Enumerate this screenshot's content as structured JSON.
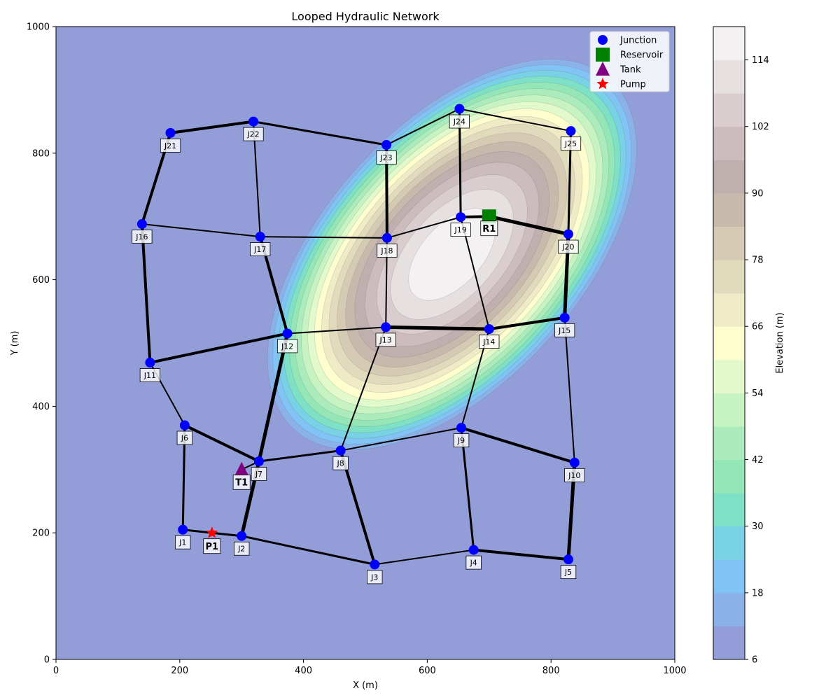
{
  "chart_data": {
    "type": "scatter",
    "title": "Looped Hydraulic Network",
    "xlabel": "X (m)",
    "ylabel": "Y (m)",
    "xlim": [
      0,
      1000
    ],
    "ylim": [
      0,
      1000
    ],
    "xticks": [
      0,
      200,
      400,
      600,
      800,
      1000
    ],
    "yticks": [
      0,
      200,
      400,
      600,
      800,
      1000
    ],
    "grid": false,
    "legend_position": "top-right",
    "legend": [
      {
        "label": "Junction",
        "marker": "circle",
        "color": "#0000ff"
      },
      {
        "label": "Reservoir",
        "marker": "square",
        "color": "#008000"
      },
      {
        "label": "Tank",
        "marker": "triangle",
        "color": "#800080"
      },
      {
        "label": "Pump",
        "marker": "star",
        "color": "#ff0000"
      }
    ],
    "colorbar": {
      "label": "Elevation (m)",
      "min": 6,
      "max": 120,
      "ticks": [
        6,
        18,
        30,
        42,
        54,
        66,
        78,
        90,
        102,
        114
      ],
      "levels": [
        6,
        12,
        18,
        24,
        30,
        36,
        42,
        48,
        54,
        60,
        66,
        72,
        78,
        84,
        90,
        96,
        102,
        108,
        114,
        120
      ],
      "colors": [
        "#939ed8",
        "#8bb2e8",
        "#82c3f6",
        "#78d1e4",
        "#7ee0c4",
        "#94e6b6",
        "#acecbc",
        "#c7f3c3",
        "#e1f9cb",
        "#fdfdcd",
        "#efebc7",
        "#e1dbbd",
        "#d5cbb5",
        "#c7b9ac",
        "#bfafae",
        "#ccbcbe",
        "#d9cdd0",
        "#e6e0e0",
        "#f3f1f1"
      ]
    },
    "terrain": {
      "peak_x": 640,
      "peak_y": 640,
      "peak_elevation": 120,
      "base_elevation": 6
    },
    "junctions": [
      {
        "label": "J1",
        "x": 205,
        "y": 205
      },
      {
        "label": "J2",
        "x": 300,
        "y": 195
      },
      {
        "label": "J3",
        "x": 515,
        "y": 150
      },
      {
        "label": "J4",
        "x": 675,
        "y": 173
      },
      {
        "label": "J5",
        "x": 828,
        "y": 158
      },
      {
        "label": "J6",
        "x": 208,
        "y": 370
      },
      {
        "label": "J7",
        "x": 328,
        "y": 313
      },
      {
        "label": "J8",
        "x": 460,
        "y": 330
      },
      {
        "label": "J9",
        "x": 655,
        "y": 366
      },
      {
        "label": "J10",
        "x": 838,
        "y": 311
      },
      {
        "label": "J11",
        "x": 152,
        "y": 469
      },
      {
        "label": "J12",
        "x": 374,
        "y": 515
      },
      {
        "label": "J13",
        "x": 533,
        "y": 525
      },
      {
        "label": "J14",
        "x": 700,
        "y": 522
      },
      {
        "label": "J15",
        "x": 822,
        "y": 540
      },
      {
        "label": "J16",
        "x": 139,
        "y": 688
      },
      {
        "label": "J17",
        "x": 330,
        "y": 668
      },
      {
        "label": "J18",
        "x": 535,
        "y": 666
      },
      {
        "label": "J19",
        "x": 654,
        "y": 699
      },
      {
        "label": "J20",
        "x": 828,
        "y": 672
      },
      {
        "label": "J21",
        "x": 185,
        "y": 832
      },
      {
        "label": "J22",
        "x": 319,
        "y": 850
      },
      {
        "label": "J23",
        "x": 534,
        "y": 813
      },
      {
        "label": "J24",
        "x": 652,
        "y": 870
      },
      {
        "label": "J25",
        "x": 832,
        "y": 835
      }
    ],
    "reservoirs": [
      {
        "label": "R1",
        "x": 700,
        "y": 700
      }
    ],
    "tanks": [
      {
        "label": "T1",
        "x": 300,
        "y": 300
      }
    ],
    "pumps": [
      {
        "label": "P1",
        "x": 252,
        "y": 200
      }
    ],
    "pipes": [
      {
        "from": "J1",
        "to": "P1",
        "weight": 3
      },
      {
        "from": "P1",
        "to": "J2",
        "weight": 3
      },
      {
        "from": "J2",
        "to": "J3",
        "weight": 3
      },
      {
        "from": "J3",
        "to": "J4",
        "weight": 2
      },
      {
        "from": "J4",
        "to": "J5",
        "weight": 4
      },
      {
        "from": "J1",
        "to": "J6",
        "weight": 3
      },
      {
        "from": "J6",
        "to": "J7",
        "weight": 4
      },
      {
        "from": "J2",
        "to": "J7",
        "weight": 5
      },
      {
        "from": "J7",
        "to": "J8",
        "weight": 3
      },
      {
        "from": "J8",
        "to": "J9",
        "weight": 2
      },
      {
        "from": "J9",
        "to": "J10",
        "weight": 4
      },
      {
        "from": "J5",
        "to": "J10",
        "weight": 5
      },
      {
        "from": "J3",
        "to": "J8",
        "weight": 4
      },
      {
        "from": "J4",
        "to": "J9",
        "weight": 3
      },
      {
        "from": "J6",
        "to": "J11",
        "weight": 2
      },
      {
        "from": "J7",
        "to": "J12",
        "weight": 5
      },
      {
        "from": "J8",
        "to": "J13",
        "weight": 2
      },
      {
        "from": "J9",
        "to": "J14",
        "weight": 2
      },
      {
        "from": "J10",
        "to": "J15",
        "weight": 2
      },
      {
        "from": "J11",
        "to": "J12",
        "weight": 4
      },
      {
        "from": "J12",
        "to": "J13",
        "weight": 2
      },
      {
        "from": "J13",
        "to": "J14",
        "weight": 5
      },
      {
        "from": "J14",
        "to": "J15",
        "weight": 4
      },
      {
        "from": "J11",
        "to": "J16",
        "weight": 4
      },
      {
        "from": "J12",
        "to": "J17",
        "weight": 4
      },
      {
        "from": "J13",
        "to": "J18",
        "weight": 2
      },
      {
        "from": "J14",
        "to": "J19",
        "weight": 2
      },
      {
        "from": "J15",
        "to": "J20",
        "weight": 5
      },
      {
        "from": "J16",
        "to": "J17",
        "weight": 2
      },
      {
        "from": "J17",
        "to": "J18",
        "weight": 2
      },
      {
        "from": "J18",
        "to": "J19",
        "weight": 2
      },
      {
        "from": "J19",
        "to": "R1",
        "weight": 4
      },
      {
        "from": "R1",
        "to": "J20",
        "weight": 5
      },
      {
        "from": "J16",
        "to": "J21",
        "weight": 4
      },
      {
        "from": "J17",
        "to": "J22",
        "weight": 2
      },
      {
        "from": "J18",
        "to": "J23",
        "weight": 4
      },
      {
        "from": "J19",
        "to": "J24",
        "weight": 3
      },
      {
        "from": "J20",
        "to": "J25",
        "weight": 3
      },
      {
        "from": "J21",
        "to": "J22",
        "weight": 4
      },
      {
        "from": "J22",
        "to": "J23",
        "weight": 3
      },
      {
        "from": "J23",
        "to": "J24",
        "weight": 2
      },
      {
        "from": "J24",
        "to": "J25",
        "weight": 2
      },
      {
        "from": "J7",
        "to": "T1",
        "weight": 2
      }
    ]
  }
}
